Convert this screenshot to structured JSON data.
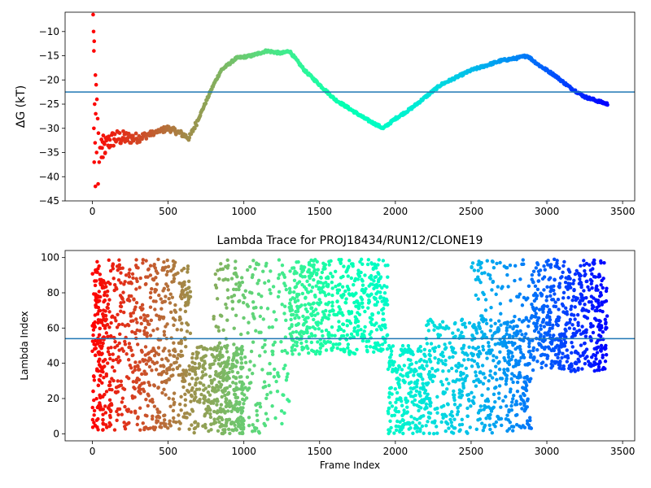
{
  "chart_data": [
    {
      "type": "scatter",
      "title": "",
      "xlabel": "",
      "ylabel": "ΔG (kT)",
      "xlim": [
        -180,
        3580
      ],
      "ylim": [
        -45,
        -6
      ],
      "xticks": [
        0,
        500,
        1000,
        1500,
        2000,
        2500,
        3000,
        3500
      ],
      "xtick_labels": [
        "0",
        "500",
        "1000",
        "1500",
        "2000",
        "2500",
        "3000",
        "3500"
      ],
      "yticks": [
        -45,
        -40,
        -35,
        -30,
        -25,
        -20,
        -15,
        -10
      ],
      "ytick_labels": [
        "−45",
        "−40",
        "−35",
        "−30",
        "−25",
        "−20",
        "−15",
        "−10"
      ],
      "hline": {
        "y": -22.5,
        "color": "#1f77b4"
      },
      "colormap": "rainbow (red at frame 0 → violet at frame 3400)",
      "grid": false,
      "trace_knots": [
        [
          0,
          -12
        ],
        [
          20,
          -22
        ],
        [
          40,
          -28
        ],
        [
          60,
          -33
        ],
        [
          80,
          -34
        ],
        [
          100,
          -33
        ],
        [
          150,
          -32
        ],
        [
          200,
          -32
        ],
        [
          300,
          -32
        ],
        [
          400,
          -31
        ],
        [
          500,
          -30
        ],
        [
          580,
          -31
        ],
        [
          640,
          -32
        ],
        [
          700,
          -28
        ],
        [
          800,
          -21
        ],
        [
          850,
          -18
        ],
        [
          950,
          -15.5
        ],
        [
          1050,
          -15
        ],
        [
          1100,
          -14.5
        ],
        [
          1150,
          -14
        ],
        [
          1250,
          -14.5
        ],
        [
          1300,
          -14
        ],
        [
          1400,
          -18
        ],
        [
          1500,
          -21
        ],
        [
          1600,
          -24
        ],
        [
          1700,
          -26
        ],
        [
          1800,
          -28
        ],
        [
          1920,
          -30
        ],
        [
          2000,
          -28
        ],
        [
          2100,
          -26
        ],
        [
          2200,
          -23.5
        ],
        [
          2300,
          -21
        ],
        [
          2400,
          -19.5
        ],
        [
          2500,
          -18
        ],
        [
          2600,
          -17
        ],
        [
          2700,
          -16
        ],
        [
          2800,
          -15.5
        ],
        [
          2870,
          -15
        ],
        [
          2950,
          -17
        ],
        [
          3050,
          -19
        ],
        [
          3150,
          -21.5
        ],
        [
          3250,
          -23.5
        ],
        [
          3400,
          -25
        ]
      ],
      "early_scatter_points": [
        [
          5,
          -6.5
        ],
        [
          8,
          -10
        ],
        [
          12,
          -12
        ],
        [
          10,
          -14
        ],
        [
          20,
          -19
        ],
        [
          25,
          -21
        ],
        [
          15,
          -25
        ],
        [
          30,
          -24
        ],
        [
          22,
          -27
        ],
        [
          35,
          -28
        ],
        [
          10,
          -30
        ],
        [
          40,
          -31
        ],
        [
          18,
          -33
        ],
        [
          50,
          -34
        ],
        [
          28,
          -35
        ],
        [
          60,
          -36
        ],
        [
          12,
          -37
        ],
        [
          45,
          -37
        ],
        [
          70,
          -36
        ],
        [
          85,
          -35
        ],
        [
          55,
          -34
        ],
        [
          38,
          -41.5
        ],
        [
          20,
          -42
        ]
      ]
    },
    {
      "type": "scatter",
      "title": "Lambda Trace for PROJ18434/RUN12/CLONE19",
      "xlabel": "Frame Index",
      "ylabel": "Lambda Index",
      "xlim": [
        -180,
        3580
      ],
      "ylim": [
        -4,
        104
      ],
      "xticks": [
        0,
        500,
        1000,
        1500,
        2000,
        2500,
        3000,
        3500
      ],
      "xtick_labels": [
        "0",
        "500",
        "1000",
        "1500",
        "2000",
        "2500",
        "3000",
        "3500"
      ],
      "yticks": [
        0,
        20,
        40,
        60,
        80,
        100
      ],
      "ytick_labels": [
        "0",
        "20",
        "40",
        "60",
        "80",
        "100"
      ],
      "hline": {
        "y": 54,
        "color": "#1f77b4"
      },
      "colormap": "rainbow (red at frame 0 → violet at frame 3400)",
      "grid": false,
      "density_regions": [
        {
          "x": [
            0,
            650
          ],
          "lambda": [
            2,
            99
          ],
          "count": 700
        },
        {
          "x": [
            650,
            1000
          ],
          "lambda": [
            0,
            50
          ],
          "count": 330
        },
        {
          "x": [
            800,
            1300
          ],
          "lambda": [
            0,
            99
          ],
          "count": 260
        },
        {
          "x": [
            1300,
            1950
          ],
          "lambda": [
            45,
            99
          ],
          "count": 560
        },
        {
          "x": [
            1950,
            2200
          ],
          "lambda": [
            0,
            50
          ],
          "count": 230
        },
        {
          "x": [
            2200,
            2900
          ],
          "lambda": [
            0,
            65
          ],
          "count": 500
        },
        {
          "x": [
            2500,
            2900
          ],
          "lambda": [
            30,
            99
          ],
          "count": 140
        },
        {
          "x": [
            2900,
            3400
          ],
          "lambda": [
            35,
            99
          ],
          "count": 520
        }
      ]
    }
  ]
}
